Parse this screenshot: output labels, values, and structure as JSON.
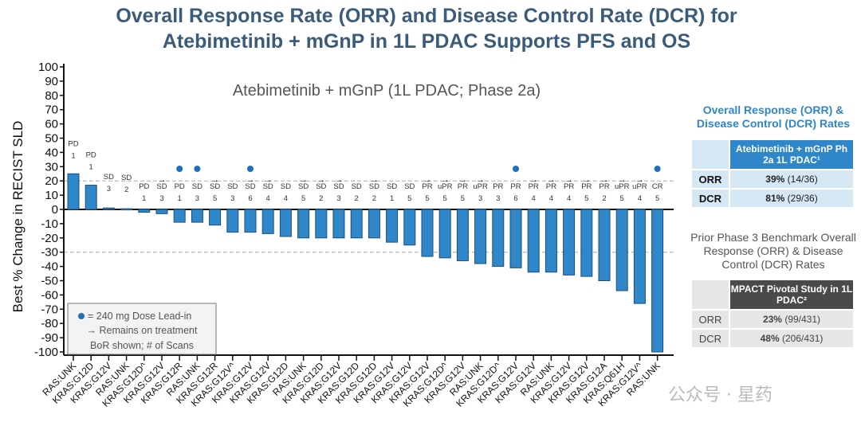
{
  "title_line1": "Overall Response Rate (ORR) and Disease Control Rate (DCR) for",
  "title_line2": "Atebimetinib + mGnP in 1L PDAC Supports PFS and OS",
  "chart_data": {
    "type": "bar",
    "title": "Atebimetinib + mGnP (1L PDAC; Phase 2a)",
    "ylabel": "Best % Change in RECIST SLD",
    "xlabel": "",
    "ylim": [
      -100,
      100
    ],
    "yticks": [
      100,
      90,
      80,
      70,
      60,
      50,
      40,
      30,
      20,
      10,
      0,
      -10,
      -20,
      -30,
      -40,
      -50,
      -60,
      -70,
      -80,
      -90,
      -100
    ],
    "reference_lines": [
      20,
      -30
    ],
    "bar_color": "#2f86c8",
    "dot_color": "#1f6fbf",
    "categories": [
      "RAS:UNK",
      "KRAS:G12D",
      "KRAS:G12V",
      "RAS:UNK",
      "KRAS:G12D^",
      "KRAS:G12V",
      "KRAS:G12R",
      "RAS:UNK",
      "KRAS:G12R",
      "KRAS:G12V^",
      "KRAS:G12V",
      "KRAS:G12V",
      "KRAS:G12D",
      "RAS:UNK",
      "KRAS:G12D",
      "KRAS:G12V",
      "KRAS:G12D",
      "KRAS:G12D",
      "KRAS:G12V",
      "KRAS:G12V",
      "KRAS:G12V",
      "KRAS:G12D^",
      "KRAS:G12V",
      "RAS:UNK",
      "KRAS:G12D^",
      "KRAS:G12V",
      "KRAS:G12V",
      "RAS:UNK",
      "KRAS:G12V",
      "KRAS:G12V",
      "KRAS:G12A",
      "KRAS:Q61H",
      "KRAS:G12V^",
      "RAS:UNK"
    ],
    "values": [
      25,
      17,
      1,
      0.5,
      -2,
      -3,
      -9,
      -9,
      -11,
      -16,
      -16,
      -17,
      -19,
      -20,
      -20,
      -20,
      -20,
      -20,
      -23,
      -25,
      -33,
      -34,
      -36,
      -38,
      -40,
      -41,
      -44,
      -44,
      -46,
      -47,
      -50,
      -57,
      -66,
      -100
    ],
    "response": [
      "PD",
      "PD",
      "SD",
      "SD",
      "PD",
      "SD",
      "PD",
      "SD",
      "SD",
      "SD",
      "SD",
      "SD",
      "SD",
      "SD",
      "SD",
      "SD",
      "SD",
      "SD",
      "SD",
      "SD",
      "PR",
      "uPR",
      "PR",
      "uPR",
      "PR",
      "PR",
      "PR",
      "PR",
      "PR",
      "PR",
      "PR",
      "uPR",
      "uPR",
      "CR"
    ],
    "scans": [
      "1",
      "1",
      "3",
      "2",
      "1",
      "3",
      "1",
      "3",
      "5",
      "3",
      "6",
      "4",
      "4",
      "5",
      "2",
      "3",
      "2",
      "2",
      "1",
      "5",
      "5",
      "5",
      "5",
      "3",
      "3",
      "6",
      "4",
      "4",
      "4",
      "5",
      "2",
      "5",
      "4",
      "5"
    ],
    "on_treatment": [
      false,
      false,
      false,
      false,
      false,
      true,
      false,
      false,
      true,
      false,
      true,
      true,
      false,
      true,
      true,
      true,
      false,
      true,
      false,
      false,
      true,
      true,
      true,
      true,
      false,
      false,
      true,
      true,
      true,
      true,
      true,
      true,
      true,
      false
    ],
    "dose_lead_in": [
      false,
      false,
      false,
      false,
      false,
      false,
      true,
      true,
      false,
      false,
      true,
      false,
      false,
      false,
      false,
      false,
      false,
      false,
      false,
      false,
      false,
      false,
      false,
      false,
      false,
      true,
      false,
      false,
      false,
      false,
      false,
      false,
      false,
      true
    ],
    "legend": {
      "dot": "= 240 mg Dose Lead-in",
      "arrow": "→ Remains on treatment",
      "note": "BoR shown; # of Scans"
    }
  },
  "panel1": {
    "heading": "Overall Response (ORR) & Disease Control (DCR) Rates",
    "column_header": "Atebimetinib + mGnP Ph 2a 1L PDAC¹",
    "rows": [
      {
        "label": "ORR",
        "pct": "39%",
        "count": "(14/36)"
      },
      {
        "label": "DCR",
        "pct": "81%",
        "count": "(29/36)"
      }
    ]
  },
  "panel2": {
    "heading": "Prior Phase 3 Benchmark Overall Response (ORR) & Disease Control (DCR) Rates",
    "column_header": "MPACT Pivotal Study in 1L PDAC²",
    "rows": [
      {
        "label": "ORR",
        "pct": "23%",
        "count": "(99/431)"
      },
      {
        "label": "DCR",
        "pct": "48%",
        "count": "(206/431)"
      }
    ]
  },
  "watermark": "公众号 · 星药"
}
